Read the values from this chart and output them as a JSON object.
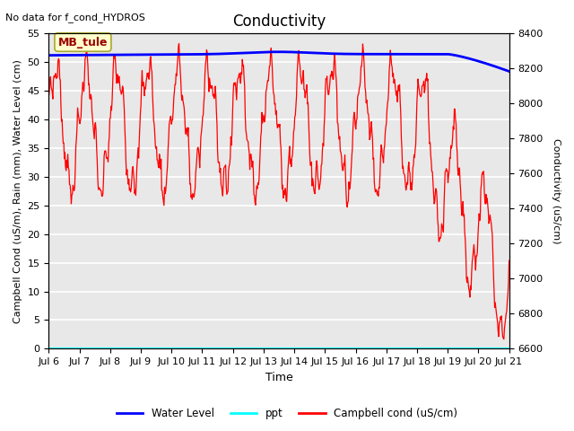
{
  "title": "Conductivity",
  "top_left_text": "No data for f_cond_HYDROS",
  "xlabel": "Time",
  "ylabel_left": "Campbell Cond (uS/m), Rain (mm), Water Level (cm)",
  "ylabel_right": "Conductivity (uS/cm)",
  "xlim": [
    0,
    15
  ],
  "ylim_left": [
    0,
    55
  ],
  "ylim_right": [
    6600,
    8400
  ],
  "xtick_labels": [
    "Jul 6",
    "Jul 7",
    "Jul 8",
    "Jul 9",
    "Jul 10",
    "Jul 11",
    "Jul 12",
    "Jul 13",
    "Jul 14",
    "Jul 15",
    "Jul 16",
    "Jul 17",
    "Jul 18",
    "Jul 19",
    "Jul 20",
    "Jul 21"
  ],
  "yticks_left": [
    0,
    5,
    10,
    15,
    20,
    25,
    30,
    35,
    40,
    45,
    50,
    55
  ],
  "yticks_right": [
    6600,
    6800,
    7000,
    7200,
    7400,
    7600,
    7800,
    8000,
    8200,
    8400
  ],
  "legend_entries": [
    "Water Level",
    "ppt",
    "Campbell cond (uS/cm)"
  ],
  "legend_colors": [
    "blue",
    "cyan",
    "red"
  ],
  "annotation_box": "MB_tule",
  "annotation_box_color": "#ffffcc",
  "annotation_box_edge": "#aaa830",
  "annotation_text_color": "#990000",
  "plot_bg_color": "#e8e8e8",
  "grid_color": "white",
  "water_level_color": "blue",
  "ppt_color": "cyan",
  "campbell_color": "red",
  "title_fontsize": 12,
  "axis_label_fontsize": 8,
  "tick_fontsize": 8
}
